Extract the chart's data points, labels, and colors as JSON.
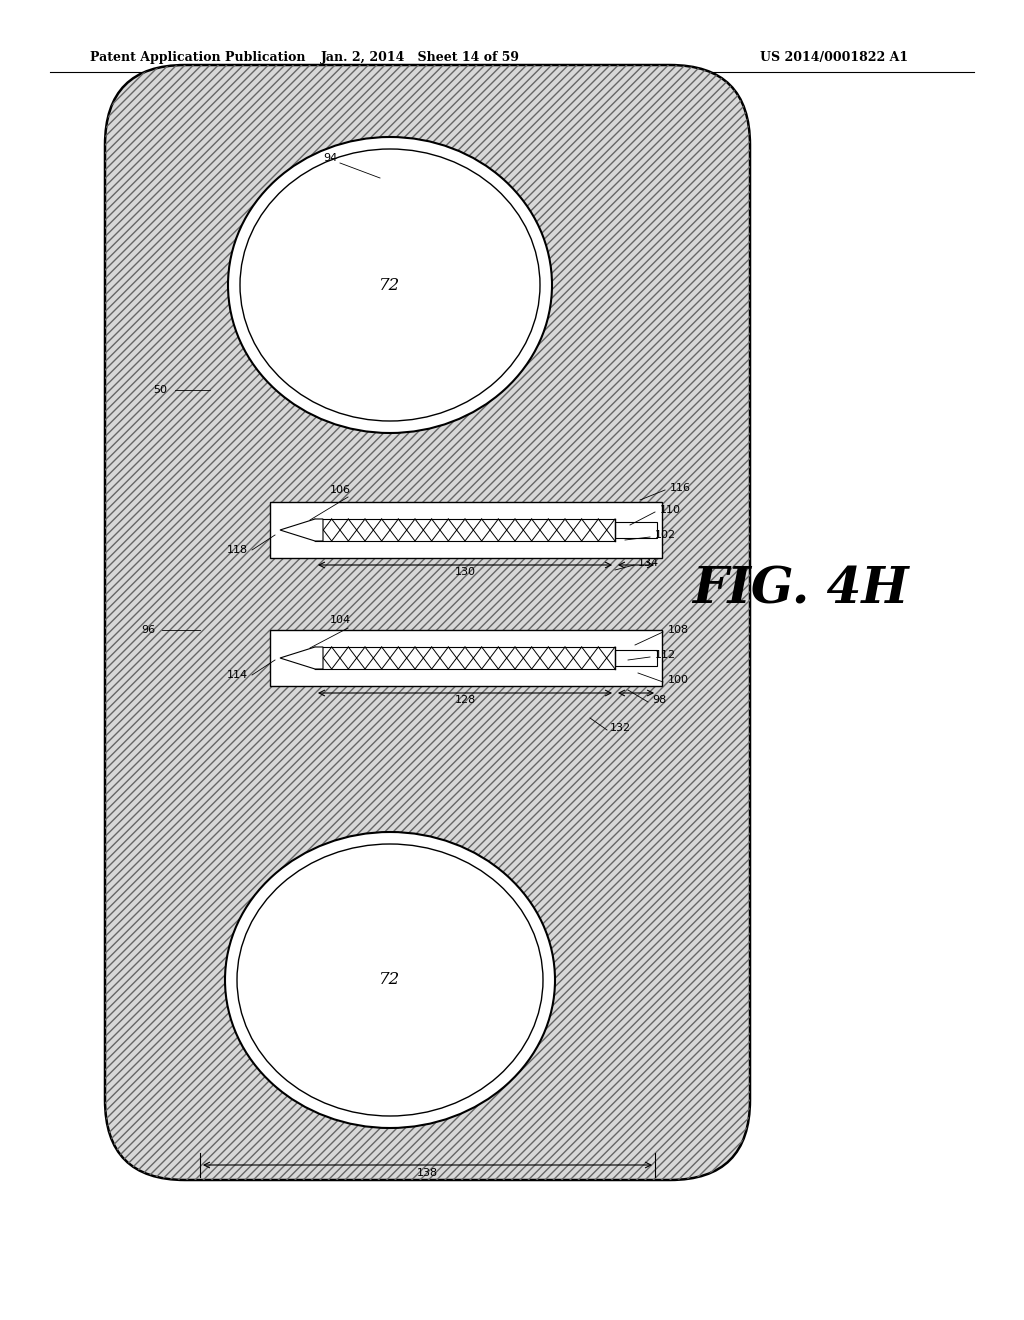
{
  "title_line1": "Patent Application Publication",
  "title_date": "Jan. 2, 2014",
  "title_sheet": "Sheet 14 of 59",
  "title_patent": "US 2014/0001822 A1",
  "fig_label": "FIG. 4H",
  "bg_color": "#ffffff"
}
